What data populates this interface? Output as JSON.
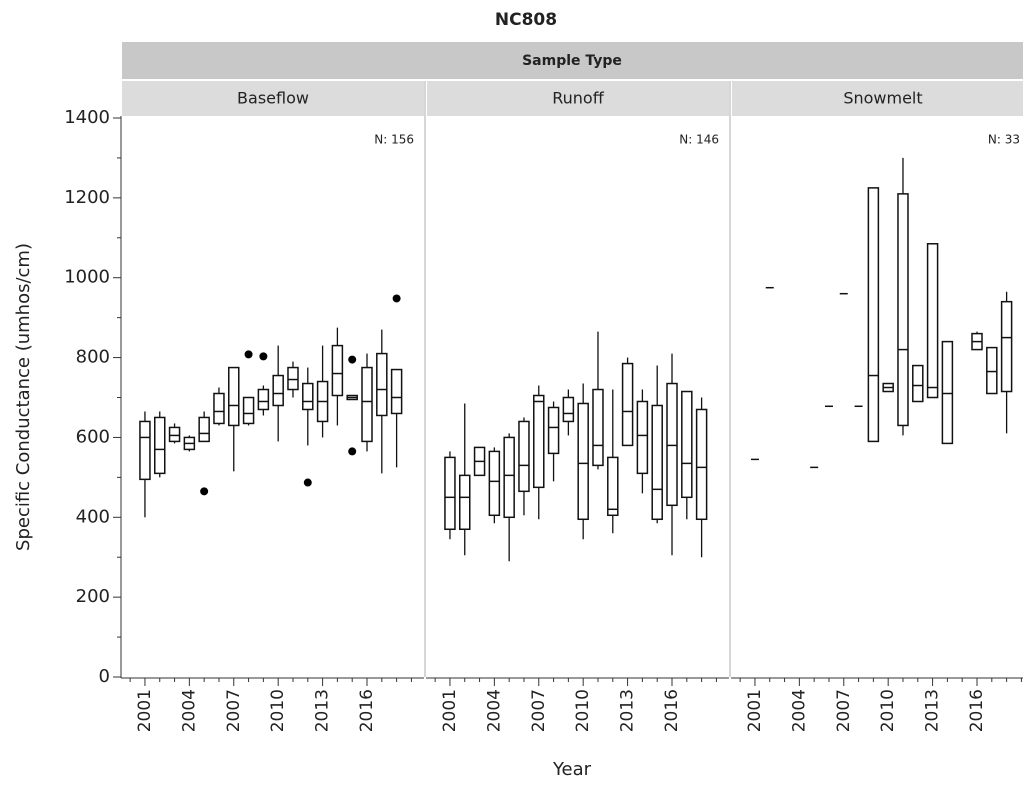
{
  "chart_data": {
    "type": "box",
    "title": "NC808",
    "facet_title": "Sample Type",
    "ylabel": "Specific Conductance (umhos/cm)",
    "xlabel": "Year",
    "ylim": [
      0,
      1400
    ],
    "yticks": [
      0,
      200,
      400,
      600,
      800,
      1000,
      1200,
      1400
    ],
    "yminorticks": [
      100,
      300,
      500,
      700,
      900,
      1100,
      1300
    ],
    "xlim": [
      1999.45,
      2019.85
    ],
    "xticks": [
      2001,
      2004,
      2007,
      2010,
      2013,
      2016
    ],
    "xminorticks": [
      2000,
      2002,
      2003,
      2005,
      2006,
      2008,
      2009,
      2011,
      2012,
      2014,
      2015,
      2017,
      2018,
      2019
    ],
    "panels": [
      {
        "name": "Baseflow",
        "n_label": "N: 156",
        "boxes": [
          {
            "x": 2001,
            "min": 400,
            "q1": 495,
            "median": 600,
            "q3": 640,
            "max": 665
          },
          {
            "x": 2002,
            "min": 500,
            "q1": 510,
            "median": 570,
            "q3": 650,
            "max": 665
          },
          {
            "x": 2003,
            "min": 585,
            "q1": 590,
            "median": 605,
            "q3": 625,
            "max": 635
          },
          {
            "x": 2004,
            "min": 565,
            "q1": 570,
            "median": 585,
            "q3": 600,
            "max": 605
          },
          {
            "x": 2005,
            "min": 590,
            "q1": 590,
            "median": 610,
            "q3": 650,
            "max": 665,
            "outliers": [
              465
            ]
          },
          {
            "x": 2006,
            "min": 630,
            "q1": 635,
            "median": 665,
            "q3": 710,
            "max": 725
          },
          {
            "x": 2007,
            "min": 515,
            "q1": 630,
            "median": 680,
            "q3": 775,
            "max": 775
          },
          {
            "x": 2008,
            "min": 630,
            "q1": 635,
            "median": 660,
            "q3": 700,
            "max": 700,
            "outliers": [
              808
            ]
          },
          {
            "x": 2009,
            "min": 655,
            "q1": 670,
            "median": 690,
            "q3": 720,
            "max": 730,
            "outliers": [
              803
            ]
          },
          {
            "x": 2010,
            "min": 590,
            "q1": 680,
            "median": 710,
            "q3": 755,
            "max": 830
          },
          {
            "x": 2011,
            "min": 700,
            "q1": 720,
            "median": 745,
            "q3": 775,
            "max": 790
          },
          {
            "x": 2012,
            "min": 580,
            "q1": 670,
            "median": 690,
            "q3": 735,
            "max": 775,
            "outliers": [
              487
            ]
          },
          {
            "x": 2013,
            "min": 600,
            "q1": 640,
            "median": 690,
            "q3": 740,
            "max": 830
          },
          {
            "x": 2014,
            "min": 630,
            "q1": 705,
            "median": 760,
            "q3": 830,
            "max": 875
          },
          {
            "x": 2015,
            "min": 695,
            "q1": 695,
            "median": 700,
            "q3": 705,
            "max": 705,
            "outliers": [
              795,
              565
            ]
          },
          {
            "x": 2016,
            "min": 565,
            "q1": 590,
            "median": 690,
            "q3": 775,
            "max": 810
          },
          {
            "x": 2017,
            "min": 510,
            "q1": 655,
            "median": 720,
            "q3": 810,
            "max": 870
          },
          {
            "x": 2018,
            "min": 525,
            "q1": 660,
            "median": 700,
            "q3": 770,
            "max": 770,
            "outliers": [
              948
            ]
          }
        ]
      },
      {
        "name": "Runoff",
        "n_label": "N: 146",
        "boxes": [
          {
            "x": 2001,
            "min": 345,
            "q1": 370,
            "median": 450,
            "q3": 550,
            "max": 565
          },
          {
            "x": 2002,
            "min": 305,
            "q1": 370,
            "median": 450,
            "q3": 505,
            "max": 685
          },
          {
            "x": 2003,
            "min": 505,
            "q1": 505,
            "median": 540,
            "q3": 575,
            "max": 575
          },
          {
            "x": 2004,
            "min": 385,
            "q1": 405,
            "median": 490,
            "q3": 565,
            "max": 575
          },
          {
            "x": 2005,
            "min": 290,
            "q1": 400,
            "median": 505,
            "q3": 600,
            "max": 610
          },
          {
            "x": 2006,
            "min": 405,
            "q1": 465,
            "median": 530,
            "q3": 640,
            "max": 650
          },
          {
            "x": 2007,
            "min": 395,
            "q1": 475,
            "median": 690,
            "q3": 705,
            "max": 730
          },
          {
            "x": 2008,
            "min": 490,
            "q1": 560,
            "median": 625,
            "q3": 675,
            "max": 690
          },
          {
            "x": 2009,
            "min": 605,
            "q1": 640,
            "median": 660,
            "q3": 700,
            "max": 720
          },
          {
            "x": 2010,
            "min": 345,
            "q1": 395,
            "median": 535,
            "q3": 685,
            "max": 735
          },
          {
            "x": 2011,
            "min": 520,
            "q1": 530,
            "median": 580,
            "q3": 720,
            "max": 865
          },
          {
            "x": 2012,
            "min": 360,
            "q1": 405,
            "median": 420,
            "q3": 550,
            "max": 720
          },
          {
            "x": 2013,
            "min": 580,
            "q1": 580,
            "median": 665,
            "q3": 785,
            "max": 800
          },
          {
            "x": 2014,
            "min": 460,
            "q1": 510,
            "median": 605,
            "q3": 690,
            "max": 720
          },
          {
            "x": 2015,
            "min": 385,
            "q1": 395,
            "median": 470,
            "q3": 680,
            "max": 780
          },
          {
            "x": 2016,
            "min": 305,
            "q1": 430,
            "median": 580,
            "q3": 735,
            "max": 810
          },
          {
            "x": 2017,
            "min": 395,
            "q1": 450,
            "median": 535,
            "q3": 715,
            "max": 715
          },
          {
            "x": 2018,
            "min": 300,
            "q1": 395,
            "median": 525,
            "q3": 670,
            "max": 700
          }
        ]
      },
      {
        "name": "Snowmelt",
        "n_label": "N: 33",
        "boxes": [
          {
            "x": 2001,
            "median": 545
          },
          {
            "x": 2002,
            "median": 975
          },
          {
            "x": 2005,
            "median": 525
          },
          {
            "x": 2006,
            "median": 678
          },
          {
            "x": 2007,
            "median": 960
          },
          {
            "x": 2008,
            "median": 678
          },
          {
            "x": 2009,
            "min": 590,
            "q1": 590,
            "median": 755,
            "q3": 1225,
            "max": 1225
          },
          {
            "x": 2010,
            "min": 715,
            "q1": 715,
            "median": 725,
            "q3": 735,
            "max": 735
          },
          {
            "x": 2011,
            "min": 605,
            "q1": 630,
            "median": 820,
            "q3": 1210,
            "max": 1300
          },
          {
            "x": 2012,
            "min": 690,
            "q1": 690,
            "median": 730,
            "q3": 780,
            "max": 780
          },
          {
            "x": 2013,
            "min": 700,
            "q1": 700,
            "median": 725,
            "q3": 1085,
            "max": 1085
          },
          {
            "x": 2014,
            "min": 585,
            "q1": 585,
            "median": 710,
            "q3": 840,
            "max": 840
          },
          {
            "x": 2016,
            "min": 820,
            "q1": 820,
            "median": 840,
            "q3": 860,
            "max": 865
          },
          {
            "x": 2017,
            "min": 710,
            "q1": 710,
            "median": 765,
            "q3": 825,
            "max": 825
          },
          {
            "x": 2018,
            "min": 610,
            "q1": 715,
            "median": 850,
            "q3": 940,
            "max": 965
          }
        ]
      }
    ]
  }
}
